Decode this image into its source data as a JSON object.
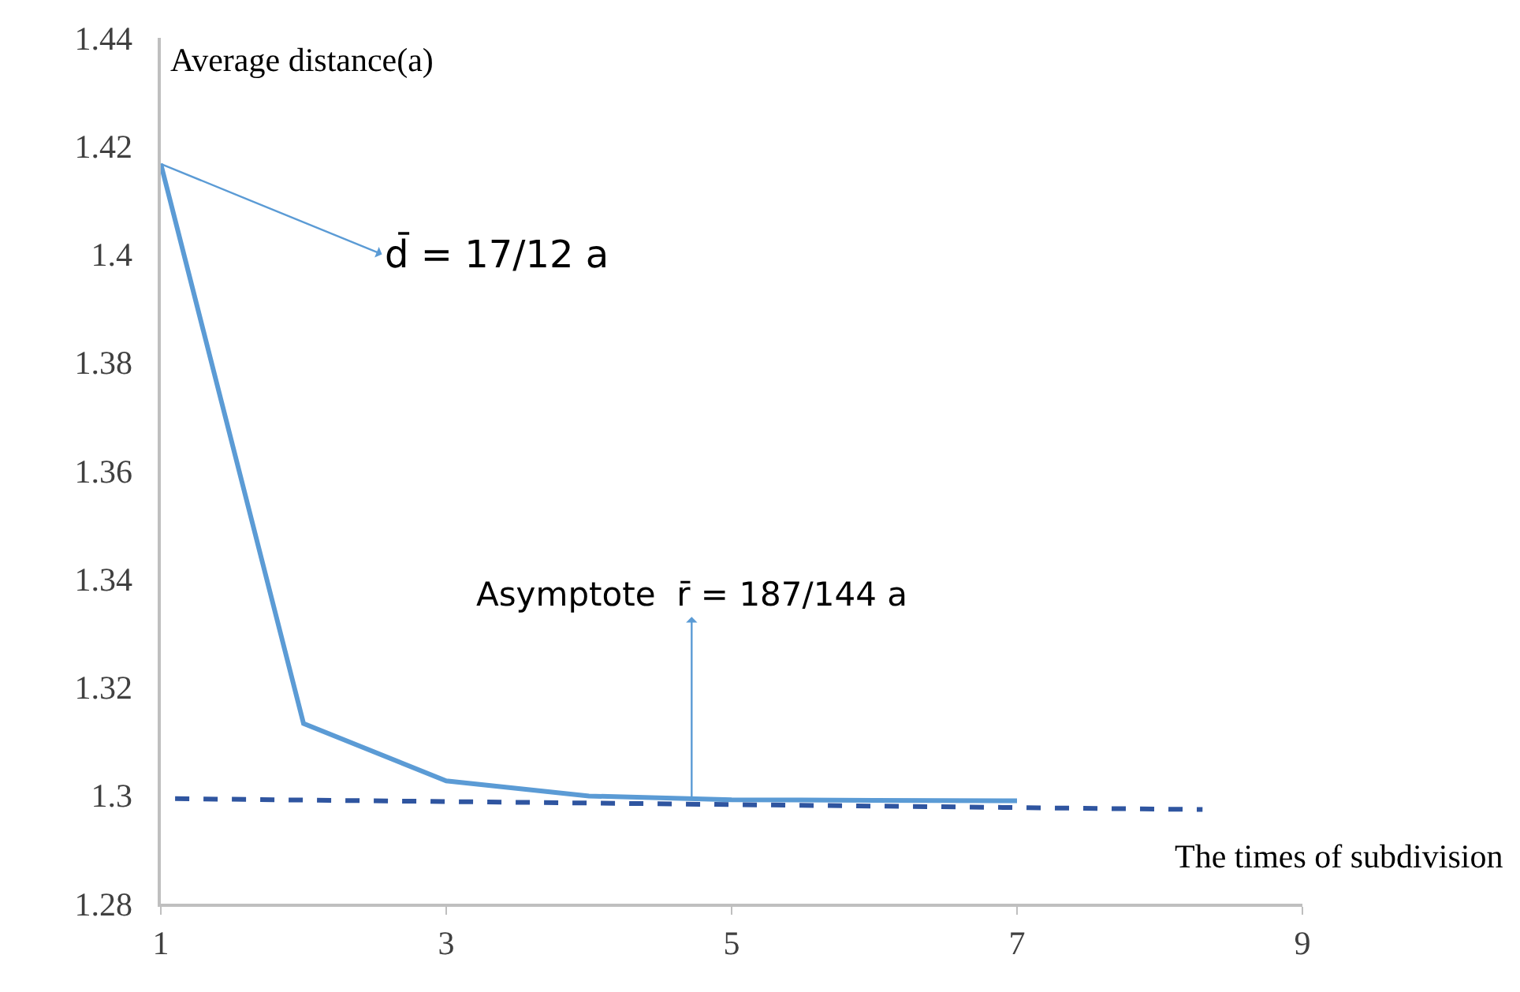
{
  "chart_data": {
    "type": "line",
    "xlabel": "The times of subdivision",
    "ylabel": "Average distance(a)",
    "x": [
      1,
      2,
      3,
      4,
      5,
      6,
      7
    ],
    "series": [
      {
        "color": "#5b9bd5",
        "values": [
          1.4167,
          1.3133,
          1.3027,
          1.2999,
          1.2992,
          1.2991,
          1.299
        ],
        "line_style": "solid"
      },
      {
        "type": "line",
        "color": "#2f55a0",
        "x": [
          1.1,
          8.3
        ],
        "values": [
          1.2994,
          1.2974
        ],
        "line_style": "dashed"
      }
    ],
    "annotations": [
      {
        "text": "d̄ = 17/12 a",
        "x": 1,
        "y": 1.4167
      },
      {
        "text": "Asymptote  r̄ = 187/144 a",
        "x": 4.72,
        "y": 1.2995
      }
    ],
    "xlim": [
      1,
      9
    ],
    "xticks": [
      1,
      3,
      5,
      7,
      9
    ],
    "ylim": [
      1.28,
      1.44
    ],
    "yticks": [
      1.28,
      1.3,
      1.32,
      1.34,
      1.36,
      1.38,
      1.4,
      1.42,
      1.44
    ],
    "marker": "none"
  }
}
